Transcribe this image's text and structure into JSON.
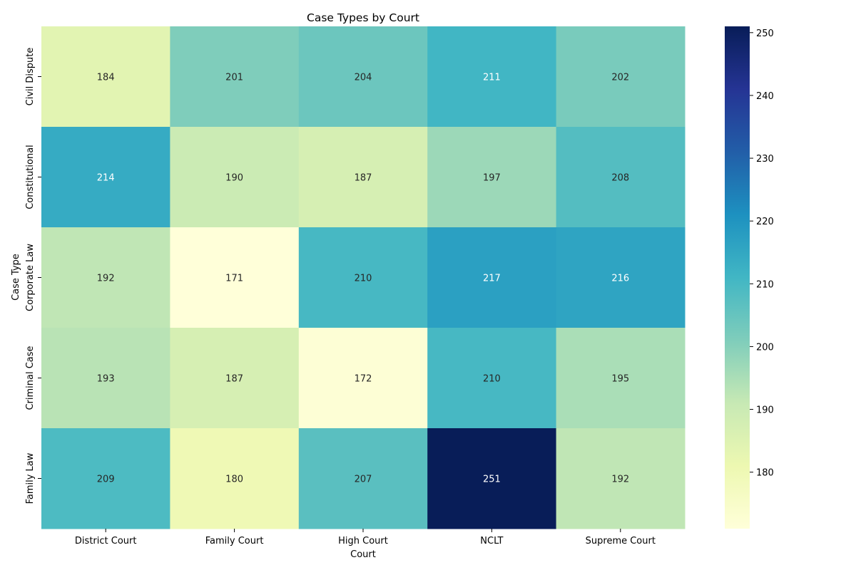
{
  "chart_data": {
    "type": "heatmap",
    "title": "Case Types by Court",
    "xlabel": "Court",
    "ylabel": "Case Type",
    "x_categories": [
      "District Court",
      "Family Court",
      "High Court",
      "NCLT",
      "Supreme Court"
    ],
    "y_categories": [
      "Civil Dispute",
      "Constitutional",
      "Corporate Law",
      "Criminal Case",
      "Family Law"
    ],
    "values": [
      [
        184,
        201,
        204,
        211,
        202
      ],
      [
        214,
        190,
        187,
        197,
        208
      ],
      [
        192,
        171,
        210,
        217,
        216
      ],
      [
        193,
        187,
        172,
        210,
        195
      ],
      [
        209,
        180,
        207,
        251,
        192
      ]
    ],
    "colormap": "YlGnBu",
    "vmin": 171,
    "vmax": 251,
    "colorbar_ticks": [
      180,
      190,
      200,
      210,
      220,
      230,
      240,
      250
    ],
    "annotations": true,
    "grid": false
  }
}
